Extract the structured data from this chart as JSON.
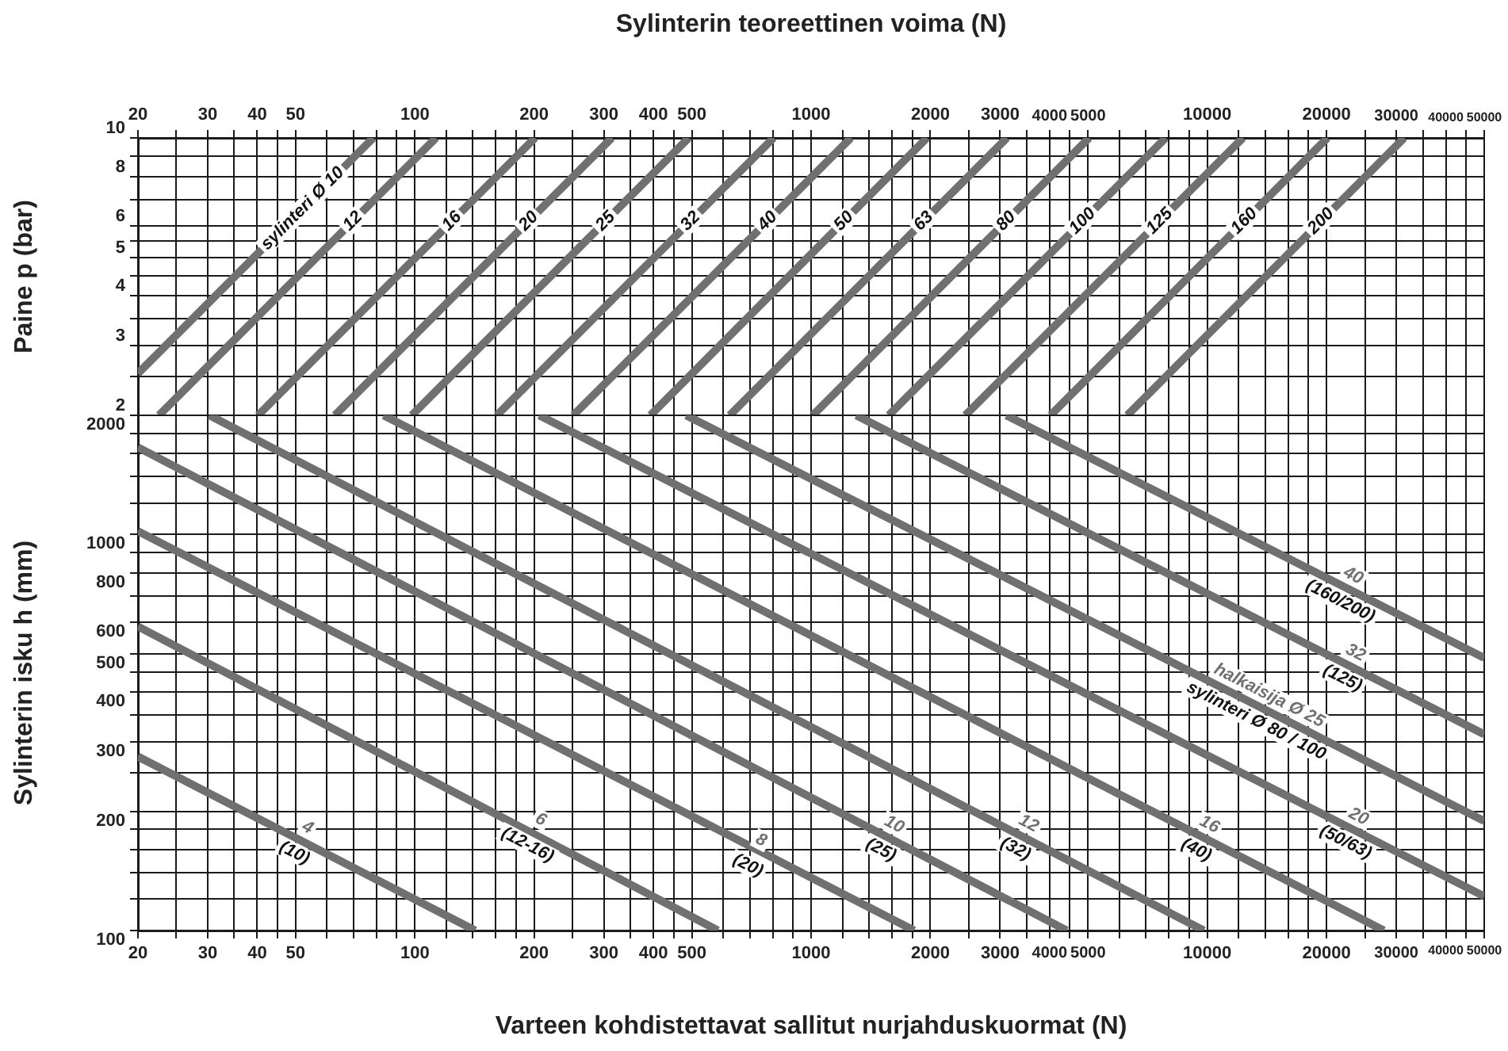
{
  "chart_data": [
    {
      "type": "line",
      "xlabel": "Sylinterin teoreettinen voima (N)",
      "ylabel": "Paine p (bar)",
      "log": "xy",
      "grid": true,
      "xlim": [
        20,
        50000
      ],
      "ylim": [
        2,
        10
      ],
      "xticks": [
        20,
        {
          "value": 25,
          "label": null
        },
        30,
        {
          "value": 35,
          "label": null
        },
        40,
        {
          "value": 45,
          "label": null
        },
        50,
        {
          "value": 60,
          "label": null
        },
        {
          "value": 70,
          "label": null
        },
        {
          "value": 80,
          "label": null
        },
        {
          "value": 90,
          "label": null
        },
        100,
        {
          "value": 120,
          "label": null
        },
        {
          "value": 140,
          "label": null
        },
        {
          "value": 160,
          "label": null
        },
        {
          "value": 180,
          "label": null
        },
        200,
        {
          "value": 250,
          "label": null
        },
        300,
        {
          "value": 350,
          "label": null
        },
        400,
        {
          "value": 450,
          "label": null
        },
        500,
        {
          "value": 600,
          "label": null
        },
        {
          "value": 700,
          "label": null
        },
        {
          "value": 800,
          "label": null
        },
        {
          "value": 900,
          "label": null
        },
        1000,
        {
          "value": 1200,
          "label": null
        },
        {
          "value": 1400,
          "label": null
        },
        {
          "value": 1600,
          "label": null
        },
        {
          "value": 1800,
          "label": null
        },
        2000,
        {
          "value": 2500,
          "label": null
        },
        3000,
        {
          "value": 3500,
          "label": null
        },
        4000,
        {
          "value": 4500,
          "label": null
        },
        5000,
        {
          "value": 6000,
          "label": null
        },
        {
          "value": 7000,
          "label": null
        },
        {
          "value": 8000,
          "label": null
        },
        {
          "value": 9000,
          "label": null
        },
        10000,
        {
          "value": 12000,
          "label": null
        },
        {
          "value": 14000,
          "label": null
        },
        {
          "value": 16000,
          "label": null
        },
        {
          "value": 18000,
          "label": null
        },
        20000,
        {
          "value": 25000,
          "label": null
        },
        30000,
        {
          "value": 35000,
          "label": null
        },
        40000,
        {
          "value": 45000,
          "label": null
        },
        50000
      ],
      "yticks": [
        2,
        {
          "value": 2.5,
          "label": null
        },
        3,
        {
          "value": 3.5,
          "label": null
        },
        4,
        {
          "value": 4.5,
          "label": null
        },
        5,
        {
          "value": 5.5,
          "label": null
        },
        6,
        {
          "value": 7,
          "label": null
        },
        8,
        {
          "value": 9,
          "label": null
        },
        10
      ],
      "series": [
        {
          "name": "sylinteri Ø 10",
          "color": "#707070",
          "x": [
            20,
            78.5
          ],
          "values": [
            2.55,
            10
          ]
        },
        {
          "name": "12",
          "color": "#707070",
          "x": [
            22.6,
            113
          ],
          "values": [
            2,
            10
          ]
        },
        {
          "name": "16",
          "color": "#707070",
          "x": [
            40.2,
            201
          ],
          "values": [
            2,
            10
          ]
        },
        {
          "name": "20",
          "color": "#707070",
          "x": [
            62.8,
            314
          ],
          "values": [
            2,
            10
          ]
        },
        {
          "name": "25",
          "color": "#707070",
          "x": [
            98.2,
            491
          ],
          "values": [
            2,
            10
          ]
        },
        {
          "name": "32",
          "color": "#707070",
          "x": [
            161,
            804
          ],
          "values": [
            2,
            10
          ]
        },
        {
          "name": "40",
          "color": "#707070",
          "x": [
            251,
            1260
          ],
          "values": [
            2,
            10
          ]
        },
        {
          "name": "50",
          "color": "#707070",
          "x": [
            393,
            1960
          ],
          "values": [
            2,
            10
          ]
        },
        {
          "name": "63",
          "color": "#707070",
          "x": [
            623,
            3120
          ],
          "values": [
            2,
            10
          ]
        },
        {
          "name": "80",
          "color": "#707070",
          "x": [
            1010,
            5030
          ],
          "values": [
            2,
            10
          ]
        },
        {
          "name": "100",
          "color": "#707070",
          "x": [
            1570,
            7850
          ],
          "values": [
            2,
            10
          ]
        },
        {
          "name": "125",
          "color": "#707070",
          "x": [
            2450,
            12300
          ],
          "values": [
            2,
            10
          ]
        },
        {
          "name": "160",
          "color": "#707070",
          "x": [
            4020,
            20100
          ],
          "values": [
            2,
            10
          ]
        },
        {
          "name": "200",
          "color": "#707070",
          "x": [
            6280,
            31400
          ],
          "values": [
            2,
            10
          ]
        }
      ]
    },
    {
      "type": "line",
      "xlabel": "Varteen kohdistettavat sallitut nurjahduskuormat (N)",
      "ylabel": "Sylinterin isku h (mm)",
      "log": "xy",
      "grid": true,
      "xlim": [
        20,
        50000
      ],
      "ylim": [
        100,
        2000
      ],
      "xticks": [
        20,
        {
          "value": 25,
          "label": null
        },
        30,
        {
          "value": 35,
          "label": null
        },
        40,
        {
          "value": 45,
          "label": null
        },
        50,
        {
          "value": 60,
          "label": null
        },
        {
          "value": 70,
          "label": null
        },
        {
          "value": 80,
          "label": null
        },
        {
          "value": 90,
          "label": null
        },
        100,
        {
          "value": 120,
          "label": null
        },
        {
          "value": 140,
          "label": null
        },
        {
          "value": 160,
          "label": null
        },
        {
          "value": 180,
          "label": null
        },
        200,
        {
          "value": 250,
          "label": null
        },
        300,
        {
          "value": 350,
          "label": null
        },
        400,
        {
          "value": 450,
          "label": null
        },
        500,
        {
          "value": 600,
          "label": null
        },
        {
          "value": 700,
          "label": null
        },
        {
          "value": 800,
          "label": null
        },
        {
          "value": 900,
          "label": null
        },
        1000,
        {
          "value": 1200,
          "label": null
        },
        {
          "value": 1400,
          "label": null
        },
        {
          "value": 1600,
          "label": null
        },
        {
          "value": 1800,
          "label": null
        },
        2000,
        {
          "value": 2500,
          "label": null
        },
        3000,
        {
          "value": 3500,
          "label": null
        },
        4000,
        {
          "value": 4500,
          "label": null
        },
        5000,
        {
          "value": 6000,
          "label": null
        },
        {
          "value": 7000,
          "label": null
        },
        {
          "value": 8000,
          "label": null
        },
        {
          "value": 9000,
          "label": null
        },
        10000,
        {
          "value": 12000,
          "label": null
        },
        {
          "value": 14000,
          "label": null
        },
        {
          "value": 16000,
          "label": null
        },
        {
          "value": 18000,
          "label": null
        },
        20000,
        {
          "value": 25000,
          "label": null
        },
        30000,
        {
          "value": 35000,
          "label": null
        },
        40000,
        {
          "value": 45000,
          "label": null
        },
        50000
      ],
      "yticks": [
        100,
        {
          "value": 120,
          "label": null
        },
        {
          "value": 140,
          "label": null
        },
        {
          "value": 160,
          "label": null
        },
        {
          "value": 180,
          "label": null
        },
        200,
        {
          "value": 250,
          "label": null
        },
        300,
        {
          "value": 350,
          "label": null
        },
        400,
        {
          "value": 450,
          "label": null
        },
        500,
        600,
        {
          "value": 700,
          "label": null
        },
        800,
        {
          "value": 900,
          "label": null
        },
        1000,
        {
          "value": 1200,
          "label": null
        },
        {
          "value": 1400,
          "label": null
        },
        {
          "value": 1600,
          "label": null
        },
        {
          "value": 1800,
          "label": null
        },
        2000
      ],
      "series": [
        {
          "name": "4",
          "color": "#707070",
          "x": [
            20,
            142
          ],
          "values": [
            275,
            100
          ]
        },
        {
          "name": "6",
          "color": "#707070",
          "x": [
            20,
            582
          ],
          "values": [
            586,
            100
          ]
        },
        {
          "name": "8",
          "color": "#707070",
          "x": [
            20,
            1820
          ],
          "values": [
            1020,
            100
          ]
        },
        {
          "name": "10",
          "color": "#707070",
          "x": [
            20,
            4420
          ],
          "values": [
            1660,
            100
          ]
        },
        {
          "name": "12",
          "color": "#707070",
          "x": [
            30.3,
            9800
          ],
          "values": [
            2000,
            100
          ]
        },
        {
          "name": "16",
          "color": "#707070",
          "x": [
            83.4,
            27900
          ],
          "values": [
            2000,
            100
          ]
        },
        {
          "name": "20",
          "color": "#707070",
          "x": [
            206,
            50000
          ],
          "values": [
            2000,
            122
          ]
        },
        {
          "name": "halkaisija Ø 25",
          "color": "#707070",
          "x": [
            484,
            50000
          ],
          "values": [
            2000,
            189
          ]
        },
        {
          "name": "32",
          "color": "#707070",
          "x": [
            1300,
            50000
          ],
          "values": [
            2000,
            313
          ]
        },
        {
          "name": "40",
          "color": "#707070",
          "x": [
            3110,
            50000
          ],
          "values": [
            2000,
            488
          ]
        }
      ],
      "annotations": [
        {
          "text": "(10)",
          "x": 51.6,
          "y": 169
        },
        {
          "text": "(12-16)",
          "x": 200,
          "y": 177
        },
        {
          "text": "(20)",
          "x": 720,
          "y": 157
        },
        {
          "text": "(25)",
          "x": 1560,
          "y": 172
        },
        {
          "text": "(32)",
          "x": 3410,
          "y": 173
        },
        {
          "text": "(40)",
          "x": 9750,
          "y": 172
        },
        {
          "text": "(50/63)",
          "x": 23200,
          "y": 180
        },
        {
          "text": "sylinteri Ø 80 / 100",
          "x": 13800,
          "y": 364
        },
        {
          "text": "(125)",
          "x": 22800,
          "y": 467
        },
        {
          "text": "(160/200)",
          "x": 22500,
          "y": 731
        }
      ]
    }
  ]
}
